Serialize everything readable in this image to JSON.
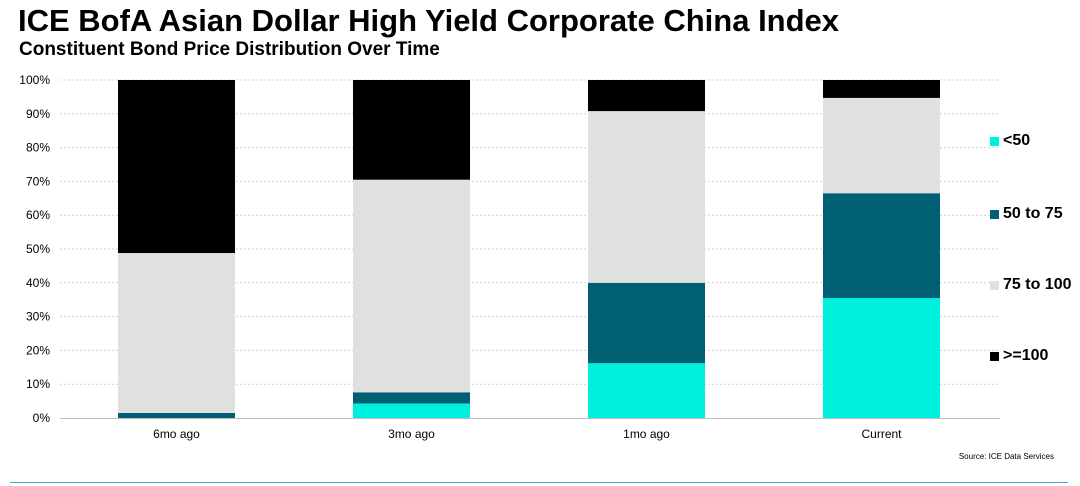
{
  "chart_data": {
    "type": "bar",
    "stacked": true,
    "title": "ICE BofA Asian Dollar High Yield Corporate China Index",
    "subtitle": "Constituent Bond Price Distribution Over Time",
    "categories": [
      "6mo ago",
      "3mo ago",
      "1mo ago",
      "Current"
    ],
    "series": [
      {
        "name": "<50",
        "color": "#00f0de",
        "values": [
          0,
          4.3,
          16.2,
          35.5
        ]
      },
      {
        "name": "50 to 75",
        "color": "#005f73",
        "values": [
          1.5,
          3.3,
          23.8,
          31.0
        ]
      },
      {
        "name": "75 to 100",
        "color": "#e0e0e0",
        "values": [
          47.3,
          62.9,
          50.8,
          28.2
        ]
      },
      {
        "name": ">=100",
        "color": "#000000",
        "values": [
          51.2,
          29.5,
          9.2,
          5.3
        ]
      }
    ],
    "ylim": [
      0,
      100
    ],
    "yticks": [
      "0%",
      "10%",
      "20%",
      "30%",
      "40%",
      "50%",
      "60%",
      "70%",
      "80%",
      "90%",
      "100%"
    ],
    "grid": true,
    "legend_position": "right",
    "source": "Source:  ICE Data Services"
  }
}
